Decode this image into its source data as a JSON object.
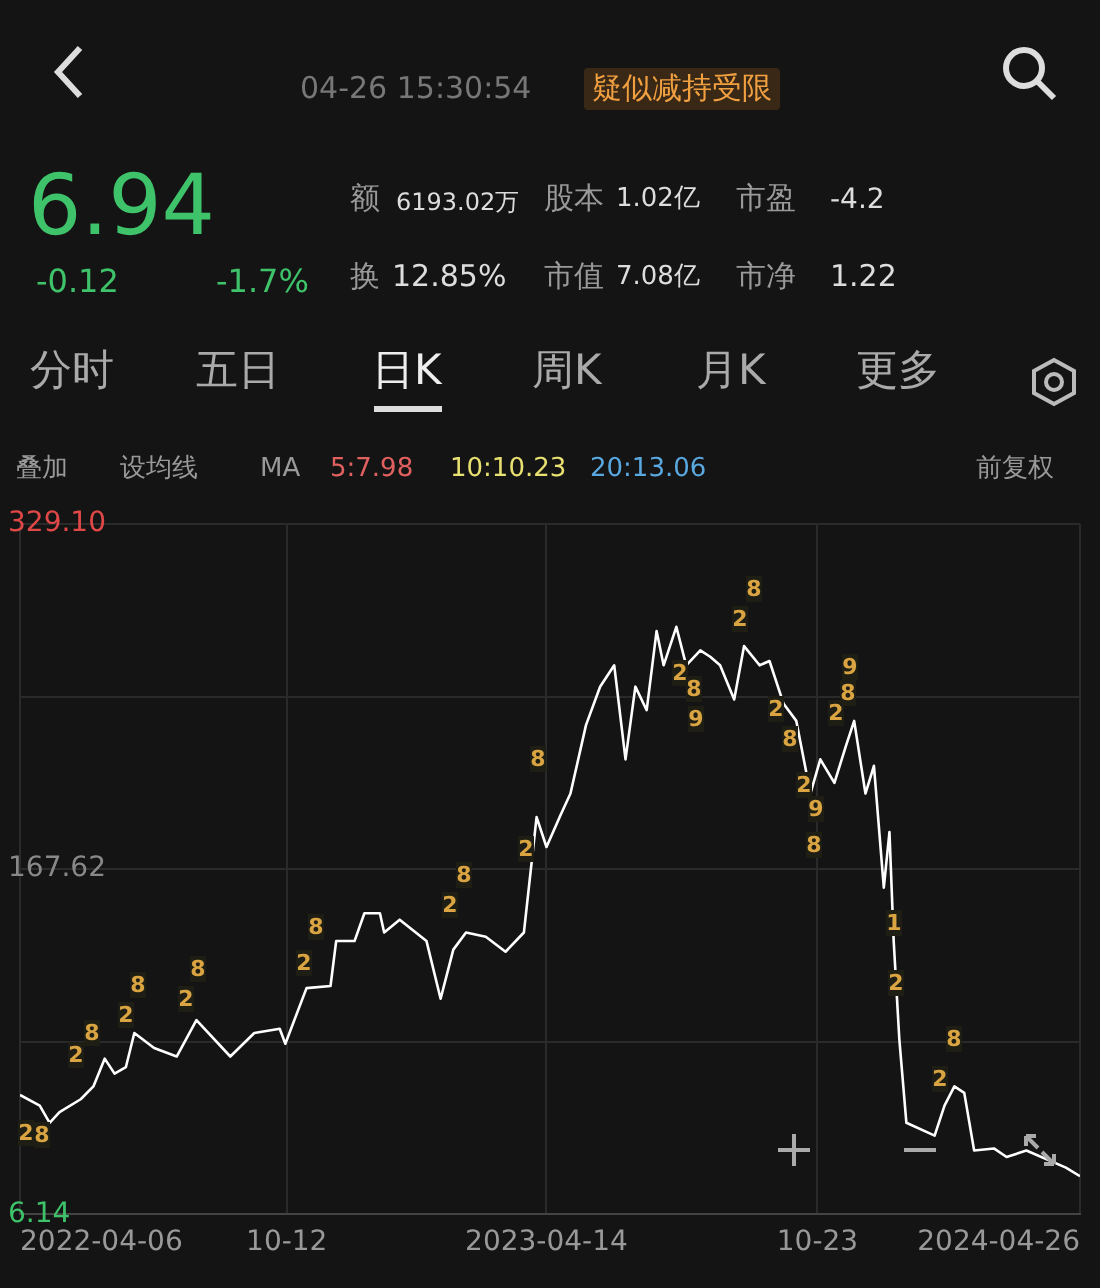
{
  "chart_data": {
    "type": "line",
    "x": [
      "2022-04-06",
      "2022-04-20",
      "2022-04-27",
      "2022-05-04",
      "2022-05-19",
      "2022-05-28",
      "2022-06-05",
      "2022-06-12",
      "2022-06-20",
      "2022-06-26",
      "2022-07-10",
      "2022-07-26",
      "2022-08-09",
      "2022-09-02",
      "2022-09-19",
      "2022-10-07",
      "2022-10-11",
      "2022-10-26",
      "2022-11-12",
      "2022-11-16",
      "2022-11-29",
      "2022-12-06",
      "2022-12-17",
      "2022-12-20",
      "2022-12-31",
      "2023-01-19",
      "2023-01-29",
      "2023-02-07",
      "2023-02-16",
      "2023-03-02",
      "2023-03-16",
      "2023-03-29",
      "2023-04-07",
      "2023-04-14",
      "2023-04-24",
      "2023-05-01",
      "2023-05-12",
      "2023-05-22",
      "2023-06-01",
      "2023-06-09",
      "2023-06-16",
      "2023-06-24",
      "2023-07-01",
      "2023-07-06",
      "2023-07-15",
      "2023-07-22",
      "2023-08-01",
      "2023-08-08",
      "2023-08-15",
      "2023-08-25",
      "2023-09-01",
      "2023-09-12",
      "2023-09-19",
      "2023-09-29",
      "2023-10-08",
      "2023-10-18",
      "2023-10-25",
      "2023-11-04",
      "2023-11-12",
      "2023-11-18",
      "2023-11-26",
      "2023-12-02",
      "2023-12-09",
      "2023-12-13",
      "2023-12-16",
      "2023-12-20",
      "2023-12-25",
      "2024-01-14",
      "2024-01-21",
      "2024-01-28",
      "2024-02-04",
      "2024-02-11",
      "2024-02-25",
      "2024-03-05",
      "2024-03-19",
      "2024-04-16",
      "2024-04-26"
    ],
    "series": [
      {
        "color": "#ffffff",
        "values": [
          62,
          57,
          49,
          54,
          60,
          66,
          79,
          72,
          75,
          91,
          84,
          80,
          97,
          80,
          91,
          93,
          86,
          112,
          113,
          134,
          134,
          147,
          147,
          138,
          144,
          134,
          107,
          130,
          138,
          136,
          129,
          138,
          192,
          178,
          193,
          203,
          235,
          253,
          263,
          219,
          253,
          242,
          279,
          263,
          281,
          263,
          270,
          267,
          263,
          247,
          272,
          263,
          265,
          245,
          237,
          203,
          219,
          208,
          225,
          237,
          203,
          216,
          159,
          185,
          134,
          88,
          49,
          43,
          57,
          66,
          63,
          36,
          37,
          33,
          36,
          28,
          24
        ]
      }
    ],
    "xlim": [
      "2022-04-06",
      "2024-04-26"
    ],
    "xticks": [
      {
        "value": "2022-04-06",
        "label": "2022-04-06"
      },
      {
        "value": "2022-10-12",
        "label": "10-12"
      },
      {
        "value": "2023-04-14",
        "label": "2023-04-14"
      },
      {
        "value": "2023-10-23",
        "label": "10-23"
      },
      {
        "value": "2024-04-26",
        "label": "2024-04-26"
      }
    ],
    "ylim": [
      6.14,
      329.1
    ],
    "yticks": [
      {
        "value": 6.14,
        "label": "6.14"
      },
      {
        "value": 86.88,
        "label": null
      },
      {
        "value": 167.62,
        "label": "167.62"
      },
      {
        "value": 248.36,
        "label": null
      },
      {
        "value": 329.1,
        "label": "329.10"
      }
    ],
    "grid": true,
    "legend": false,
    "marker": "none",
    "line_style": "solid",
    "annotations": [
      "04-26 15:30:54",
      "疑似减持受限",
      "6.94",
      "-0.12",
      "-1.7%",
      "额",
      "6193.02万",
      "股本",
      "1.02亿",
      "市盈",
      "-4.2",
      "换",
      "12.85%",
      "市值",
      "7.08亿",
      "市净",
      "1.22",
      "分时",
      "五日",
      "日K",
      "周K",
      "月K",
      "更多",
      "叠加",
      "设均线",
      "MA",
      "5:7.98",
      "10:10.23",
      "20:13.06",
      "前复权",
      "2",
      "8",
      "2",
      "8",
      "2",
      "8",
      "2",
      "8",
      "2",
      "8",
      "2",
      "8",
      "2",
      "8",
      "2",
      "8",
      "9",
      "2",
      "8",
      "2",
      "8",
      "2",
      "9",
      "8",
      "2",
      "8",
      "9",
      "1",
      "2",
      "2",
      "8"
    ]
  }
}
